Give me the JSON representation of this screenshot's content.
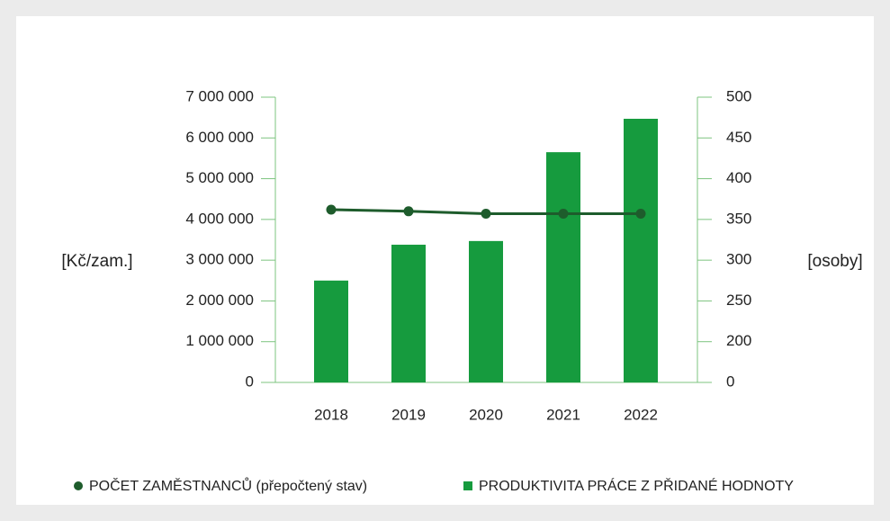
{
  "chart_data": {
    "type": "bar",
    "y_label": "[Kč/zam.]",
    "y2_label": "[osoby]",
    "categories": [
      "2018",
      "2019",
      "2020",
      "2021",
      "2022"
    ],
    "series": [
      {
        "name": "POČET ZAMĚSTNANCŮ (přepočtený stav)",
        "type": "line",
        "axis": "y2",
        "color": "#1e5c2c",
        "values": [
          362,
          360,
          357,
          357,
          357
        ]
      },
      {
        "name": "PRODUKTIVITA PRÁCE Z PŘIDANÉ HODNOTY",
        "type": "bar",
        "axis": "y",
        "color": "#169b3e",
        "values": [
          2500000,
          3380000,
          3470000,
          5650000,
          6470000
        ]
      }
    ],
    "legend_order": [
      0,
      1
    ],
    "ylim": [
      0,
      7000000
    ],
    "yticks": [
      0,
      {
        "value": 1000000,
        "label": "1 000 000"
      },
      {
        "value": 2000000,
        "label": "2 000 000"
      },
      {
        "value": 3000000,
        "label": "3 000 000"
      },
      {
        "value": 4000000,
        "label": "4 000 000"
      },
      {
        "value": 5000000,
        "label": "5 000 000"
      },
      {
        "value": 6000000,
        "label": "6 000 000"
      },
      {
        "value": 7000000,
        "label": "7 000 000"
      }
    ],
    "y2lim": [
      150,
      500
    ],
    "y2ticks": [
      {
        "value": 150,
        "label": "0"
      },
      200,
      250,
      300,
      350,
      400,
      450,
      500
    ],
    "axis_color": "#7cc47f"
  }
}
